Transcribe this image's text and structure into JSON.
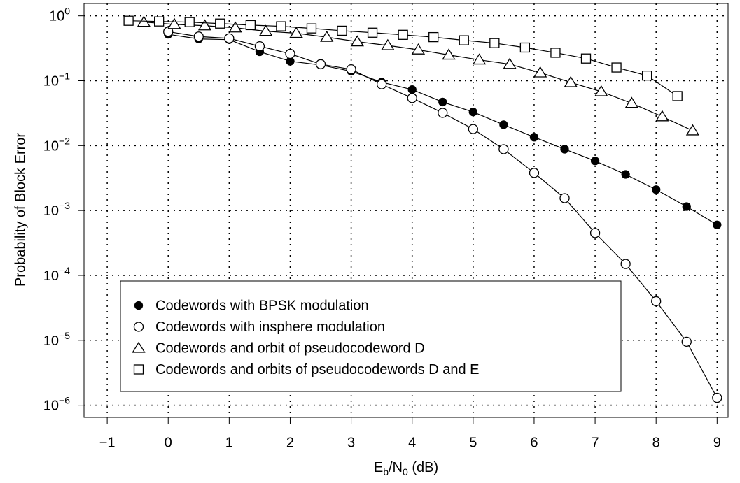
{
  "chart_data": {
    "type": "line",
    "ylabel": "Probability of Block Error",
    "xlabel_parts": [
      {
        "text": "E"
      },
      {
        "text": "b",
        "sub": true
      },
      {
        "text": "/N"
      },
      {
        "text": "0",
        "sub": true
      },
      {
        "text": " (dB)"
      }
    ],
    "xlim": [
      -1.38,
      9.18
    ],
    "ylim": [
      6.5e-07,
      1.55
    ],
    "log_y": true,
    "grid": true,
    "legend": "bottom-left",
    "xticks": [
      {
        "value": -1,
        "label": "−1"
      },
      0,
      1,
      2,
      3,
      4,
      5,
      6,
      7,
      8,
      9
    ],
    "yticks": [
      {
        "value": 1,
        "label": "10",
        "exponent": "0"
      },
      {
        "value": 0.1,
        "label": "10",
        "exponent": "−1"
      },
      {
        "value": 0.01,
        "label": "10",
        "exponent": "−2"
      },
      {
        "value": 0.001,
        "label": "10",
        "exponent": "−3"
      },
      {
        "value": 0.0001,
        "label": "10",
        "exponent": "−4"
      },
      {
        "value": 1e-05,
        "label": "10",
        "exponent": "−5"
      },
      {
        "value": 1e-06,
        "label": "10",
        "exponent": "−6"
      }
    ],
    "series": [
      {
        "name": "Codewords with BPSK modulation",
        "color": "#000000",
        "marker": "filled-circle",
        "x": [
          0,
          0.5,
          1,
          1.5,
          2,
          2.5,
          3,
          3.5,
          4,
          4.5,
          5,
          5.5,
          6,
          6.5,
          7,
          7.5,
          8,
          8.5,
          9
        ],
        "values": [
          0.52,
          0.44,
          0.43,
          0.28,
          0.2,
          0.175,
          0.14,
          0.095,
          0.073,
          0.047,
          0.033,
          0.021,
          0.0135,
          0.0088,
          0.0058,
          0.0036,
          0.0021,
          0.00115,
          0.0006
        ]
      },
      {
        "name": "Codewords with insphere modulation",
        "color": "#000000",
        "marker": "circle",
        "x": [
          0,
          0.5,
          1,
          1.5,
          2,
          2.5,
          3,
          3.5,
          4,
          4.5,
          5,
          5.5,
          6,
          6.5,
          7,
          7.5,
          8,
          8.5,
          9
        ],
        "values": [
          0.57,
          0.48,
          0.45,
          0.34,
          0.26,
          0.18,
          0.15,
          0.088,
          0.054,
          0.032,
          0.018,
          0.0088,
          0.0038,
          0.00155,
          0.00045,
          0.00015,
          4e-05,
          9.5e-06,
          1.3e-06
        ]
      },
      {
        "name": "Codewords and orbit of pseudocodeword D",
        "color": "#000000",
        "marker": "triangle",
        "x": [
          -0.4,
          0.1,
          0.6,
          1.1,
          1.6,
          2.1,
          2.6,
          3.1,
          3.6,
          4.1,
          4.6,
          5.1,
          5.6,
          6.1,
          6.6,
          7.1,
          7.6,
          8.1,
          8.6
        ],
        "values": [
          0.8,
          0.74,
          0.705,
          0.655,
          0.58,
          0.54,
          0.47,
          0.4,
          0.35,
          0.3,
          0.25,
          0.21,
          0.18,
          0.133,
          0.094,
          0.068,
          0.045,
          0.028,
          0.017
        ]
      },
      {
        "name": "Codewords and orbits of pseudocodewords D and E",
        "color": "#000000",
        "marker": "square",
        "x": [
          -0.65,
          -0.15,
          0.35,
          0.85,
          1.35,
          1.85,
          2.35,
          2.85,
          3.35,
          3.85,
          4.35,
          4.85,
          5.35,
          5.85,
          6.35,
          6.85,
          7.35,
          7.85,
          8.35
        ],
        "values": [
          0.84,
          0.82,
          0.8,
          0.76,
          0.72,
          0.69,
          0.64,
          0.59,
          0.55,
          0.51,
          0.47,
          0.42,
          0.38,
          0.325,
          0.27,
          0.22,
          0.16,
          0.12,
          0.058
        ]
      }
    ]
  }
}
